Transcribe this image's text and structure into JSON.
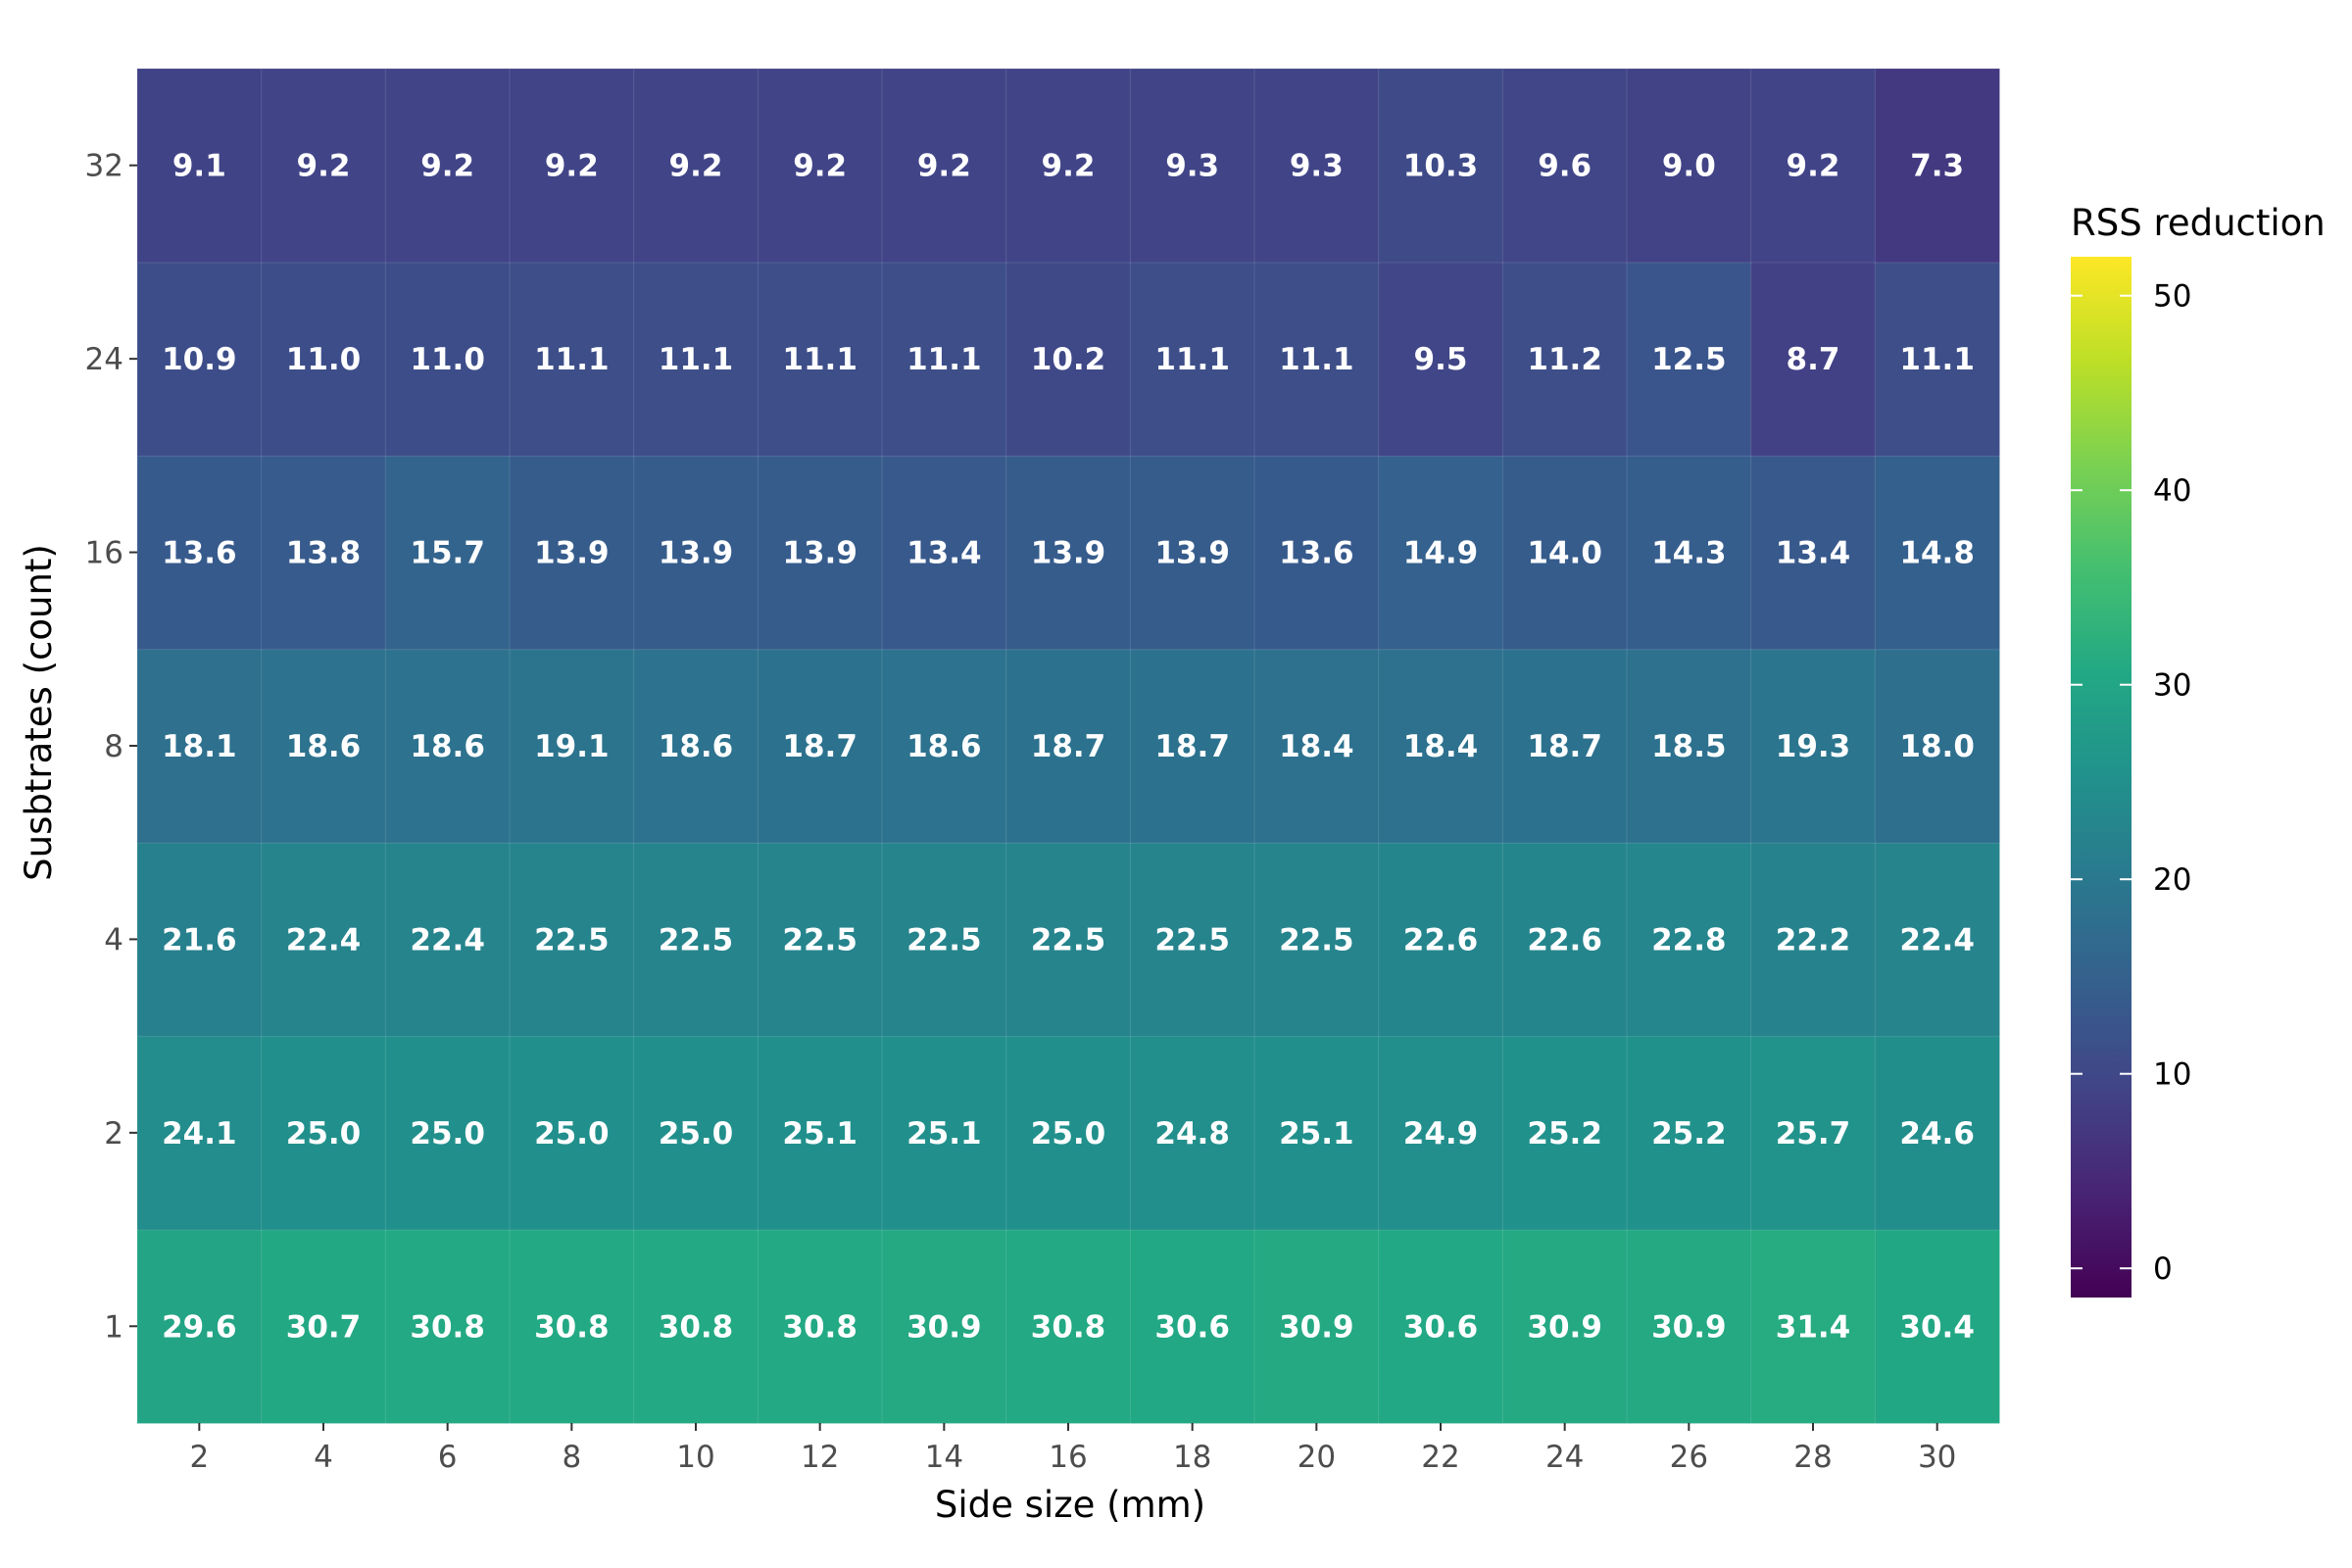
{
  "chart_data": {
    "type": "heatmap",
    "xlabel": "Side size (mm)",
    "ylabel": "Susbtrates (count)",
    "x_categories": [
      "2",
      "4",
      "6",
      "8",
      "10",
      "12",
      "14",
      "16",
      "18",
      "20",
      "22",
      "24",
      "26",
      "28",
      "30"
    ],
    "y_categories": [
      "1",
      "2",
      "4",
      "8",
      "16",
      "24",
      "32"
    ],
    "values": [
      [
        29.6,
        30.7,
        30.8,
        30.8,
        30.8,
        30.8,
        30.9,
        30.8,
        30.6,
        30.9,
        30.6,
        30.9,
        30.9,
        31.4,
        30.4
      ],
      [
        24.1,
        25.0,
        25.0,
        25.0,
        25.0,
        25.1,
        25.1,
        25.0,
        24.8,
        25.1,
        24.9,
        25.2,
        25.2,
        25.7,
        24.6
      ],
      [
        21.6,
        22.4,
        22.4,
        22.5,
        22.5,
        22.5,
        22.5,
        22.5,
        22.5,
        22.5,
        22.6,
        22.6,
        22.8,
        22.2,
        22.4
      ],
      [
        18.1,
        18.6,
        18.6,
        19.1,
        18.6,
        18.7,
        18.6,
        18.7,
        18.7,
        18.4,
        18.4,
        18.7,
        18.5,
        19.3,
        18.0
      ],
      [
        13.6,
        13.8,
        15.7,
        13.9,
        13.9,
        13.9,
        13.4,
        13.9,
        13.9,
        13.6,
        14.9,
        14.0,
        14.3,
        13.4,
        14.8
      ],
      [
        10.9,
        11.0,
        11.0,
        11.1,
        11.1,
        11.1,
        11.1,
        10.2,
        11.1,
        11.1,
        9.5,
        11.2,
        12.5,
        8.7,
        11.1
      ],
      [
        9.1,
        9.2,
        9.2,
        9.2,
        9.2,
        9.2,
        9.2,
        9.2,
        9.3,
        9.3,
        10.3,
        9.6,
        9.0,
        9.2,
        7.3
      ]
    ],
    "colorbar": {
      "title": "RSS reduction",
      "range": [
        -1.5,
        52
      ],
      "ticks": [
        0,
        10,
        20,
        30,
        40,
        50
      ],
      "colormap": "viridis"
    },
    "legend_placement": "right",
    "grid": false
  }
}
